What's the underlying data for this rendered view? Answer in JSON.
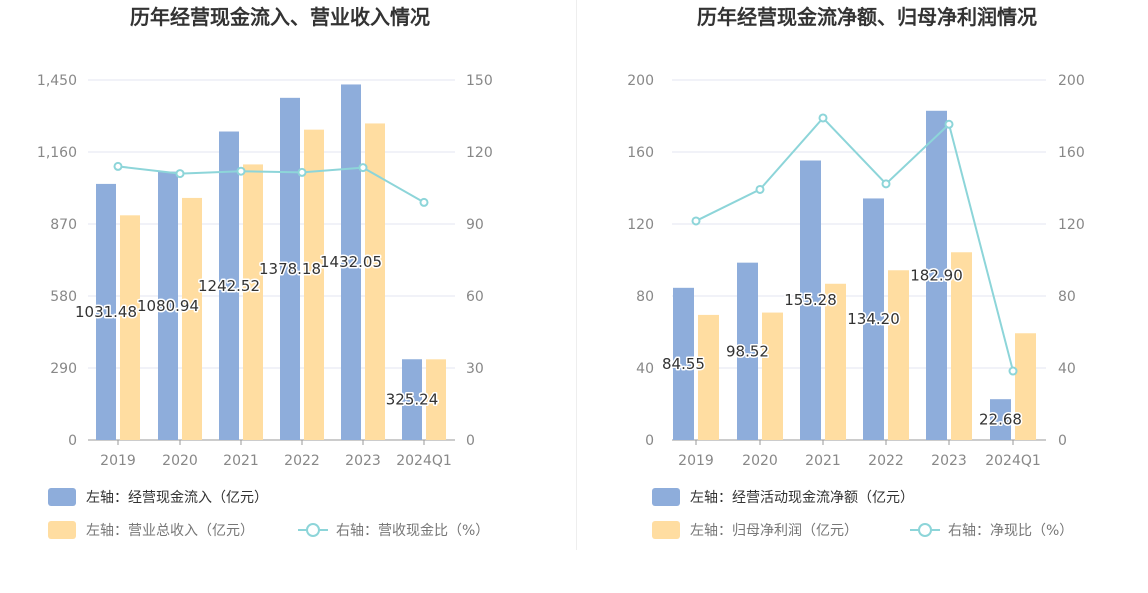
{
  "colors": {
    "bar_primary": "#8EADDB",
    "bar_secondary": "#FFDDA1",
    "line": "#8DD5D9",
    "grid": "#E3E6F0",
    "axis": "#999999"
  },
  "chart_data": [
    {
      "type": "bar",
      "title": "历年经营现金流入、营业收入情况",
      "categories": [
        "2019",
        "2020",
        "2021",
        "2022",
        "2023",
        "2024Q1"
      ],
      "left_axis": {
        "ylim": [
          0,
          1450
        ],
        "ticks": [
          "0",
          "290",
          "580",
          "870",
          "1,160",
          "1,450"
        ]
      },
      "right_axis": {
        "ylim": [
          0,
          150
        ],
        "ticks": [
          "0",
          "30",
          "60",
          "90",
          "120",
          "150"
        ]
      },
      "series": [
        {
          "name": "左轴：经营现金流入（亿元）",
          "type": "bar",
          "axis": "left",
          "values": [
            1031.48,
            1080.94,
            1242.52,
            1378.18,
            1432.05,
            325.24
          ],
          "labels": [
            "1031.48",
            "1080.94",
            "1242.52",
            "1378.18",
            "1432.05",
            "325.24"
          ]
        },
        {
          "name": "左轴：营业总收入（亿元）",
          "type": "bar",
          "axis": "left",
          "values": [
            905,
            975,
            1110,
            1250,
            1275,
            325
          ]
        },
        {
          "name": "右轴：营收现金比（%）",
          "type": "line",
          "axis": "right",
          "values": [
            114,
            111,
            112,
            111.5,
            113.5,
            99
          ]
        }
      ],
      "legend_position": "bottom-left",
      "grid": true
    },
    {
      "type": "bar",
      "title": "历年经营现金流净额、归母净利润情况",
      "categories": [
        "2019",
        "2020",
        "2021",
        "2022",
        "2023",
        "2024Q1"
      ],
      "left_axis": {
        "ylim": [
          0,
          200
        ],
        "ticks": [
          "0",
          "40",
          "80",
          "120",
          "160",
          "200"
        ]
      },
      "right_axis": {
        "ylim": [
          0,
          200
        ],
        "ticks": [
          "0",
          "40",
          "80",
          "120",
          "160",
          "200"
        ]
      },
      "series": [
        {
          "name": "左轴：经营活动现金流净额（亿元）",
          "type": "bar",
          "axis": "left",
          "values": [
            84.55,
            98.52,
            155.28,
            134.2,
            182.9,
            22.68
          ],
          "labels": [
            "84.55",
            "98.52",
            "155.28",
            "134.20",
            "182.90",
            "22.68"
          ]
        },
        {
          "name": "左轴：归母净利润（亿元）",
          "type": "bar",
          "axis": "left",
          "values": [
            69.5,
            70.8,
            86.8,
            94.3,
            104.3,
            59.3
          ]
        },
        {
          "name": "右轴：净现比（%）",
          "type": "line",
          "axis": "right",
          "values": [
            121.7,
            139.2,
            178.9,
            142.3,
            175.4,
            38.3
          ]
        }
      ],
      "legend_position": "bottom-left",
      "grid": true
    }
  ]
}
